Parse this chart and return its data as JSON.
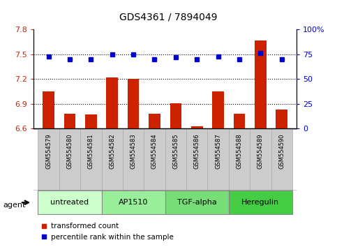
{
  "title": "GDS4361 / 7894049",
  "samples": [
    "GSM554579",
    "GSM554580",
    "GSM554581",
    "GSM554582",
    "GSM554583",
    "GSM554584",
    "GSM554585",
    "GSM554586",
    "GSM554587",
    "GSM554588",
    "GSM554589",
    "GSM554590"
  ],
  "bar_values": [
    7.05,
    6.78,
    6.77,
    7.22,
    7.2,
    6.78,
    6.91,
    6.63,
    7.05,
    6.78,
    7.67,
    6.83
  ],
  "percentile_values": [
    73,
    70,
    70,
    75,
    75,
    70,
    72,
    70,
    73,
    70,
    76,
    70
  ],
  "bar_bottom": 6.6,
  "ylim_left": [
    6.6,
    7.8
  ],
  "ylim_right": [
    0,
    100
  ],
  "yticks_left": [
    6.6,
    6.9,
    7.2,
    7.5,
    7.8
  ],
  "yticks_right": [
    0,
    25,
    50,
    75,
    100
  ],
  "ytick_labels_left": [
    "6.6",
    "6.9",
    "7.2",
    "7.5",
    "7.8"
  ],
  "ytick_labels_right": [
    "0",
    "25",
    "50",
    "75",
    "100%"
  ],
  "hlines": [
    6.9,
    7.2,
    7.5
  ],
  "bar_color": "#cc2200",
  "dot_color": "#0000cc",
  "groups": [
    {
      "label": "untreated",
      "start": 0,
      "end": 3,
      "color": "#ccffcc"
    },
    {
      "label": "AP1510",
      "start": 3,
      "end": 6,
      "color": "#99ee99"
    },
    {
      "label": "TGF-alpha",
      "start": 6,
      "end": 9,
      "color": "#77dd77"
    },
    {
      "label": "Heregulin",
      "start": 9,
      "end": 12,
      "color": "#44cc44"
    }
  ],
  "agent_label": "agent",
  "legend_bar_label": "transformed count",
  "legend_dot_label": "percentile rank within the sample",
  "left_tick_color": "#cc2200",
  "right_tick_color": "#0000cc",
  "sample_box_color": "#cccccc",
  "group_border_color": "#888888"
}
